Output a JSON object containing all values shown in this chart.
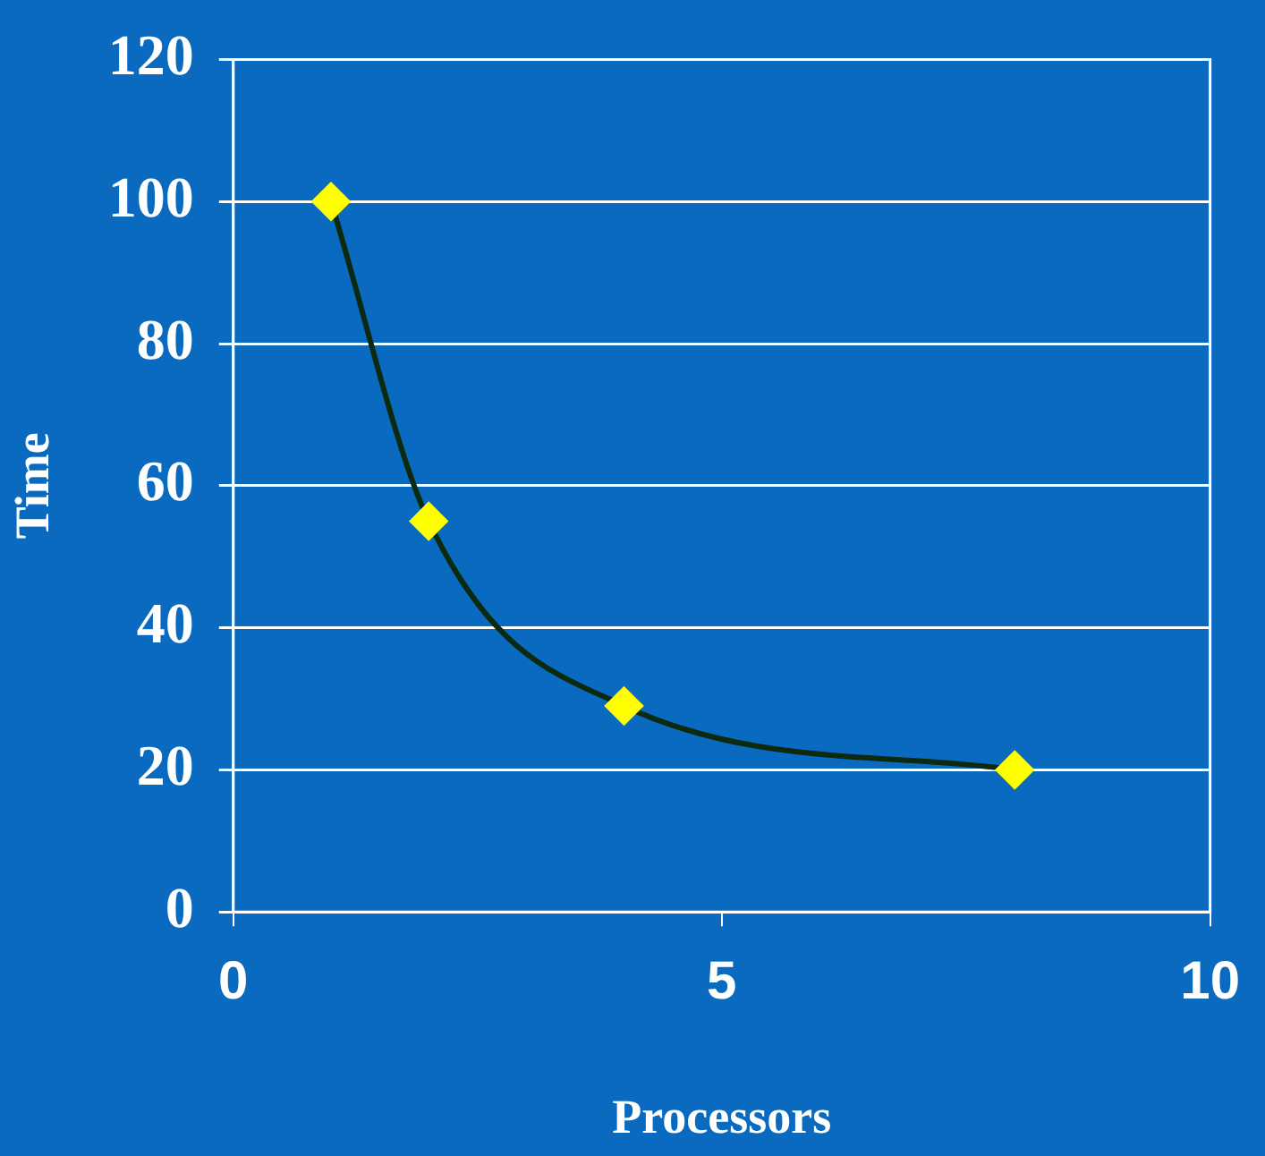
{
  "chart_data": {
    "type": "line",
    "xlabel": "Processors",
    "ylabel": "Time",
    "x": [
      1,
      2,
      4,
      8
    ],
    "series": [
      {
        "color": "#0b2a10",
        "colors": [
          "#ffff00",
          "#ffff00",
          "#ffff00",
          "#ffff00"
        ],
        "values": [
          100,
          55,
          29,
          20
        ]
      }
    ],
    "xlim": [
      0,
      10
    ],
    "xticks": [
      0,
      5,
      10
    ],
    "ylim": [
      0,
      120
    ],
    "yticks": [
      0,
      20,
      40,
      60,
      80,
      100,
      120
    ],
    "grid": "y",
    "legend": false,
    "marker": "diamond",
    "line_style": "solid"
  }
}
